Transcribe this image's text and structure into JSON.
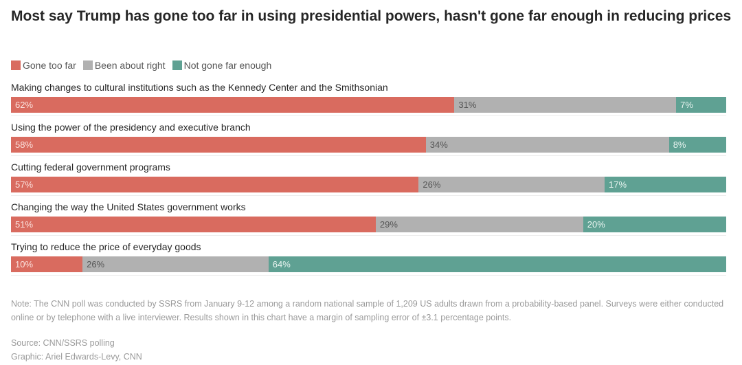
{
  "chart_data": {
    "type": "bar",
    "orientation": "horizontal-stacked",
    "title": "Most say Trump has gone too far in using presidential powers, hasn't gone far enough in reducing prices",
    "xlabel": "",
    "ylabel": "",
    "xlim": [
      0,
      100
    ],
    "grid": false,
    "legend_position": "top-left",
    "categories": [
      "Making changes to cultural institutions such as the Kennedy Center and the Smithsonian",
      "Using the power of the presidency and executive branch",
      "Cutting federal government programs",
      "Changing the way the United States government works",
      "Trying to reduce the price of everyday goods"
    ],
    "series": [
      {
        "name": "Gone too far",
        "color": "#d96b5f",
        "values": [
          62,
          58,
          57,
          51,
          10
        ]
      },
      {
        "name": "Been about right",
        "color": "#b1b1b1",
        "values": [
          31,
          34,
          26,
          29,
          26
        ]
      },
      {
        "name": "Not gone far enough",
        "color": "#5fa193",
        "values": [
          7,
          8,
          17,
          20,
          64
        ]
      }
    ],
    "note": "Note: The CNN poll was conducted by SSRS from January 9-12 among a random national sample of 1,209 US adults drawn from a probability-based panel. Surveys were either conducted online or by telephone with a live interviewer. Results shown in this chart have a margin of sampling error of ±3.1 percentage points.",
    "source": "Source: CNN/SSRS polling",
    "credit": "Graphic: Ariel Edwards-Levy, CNN"
  }
}
